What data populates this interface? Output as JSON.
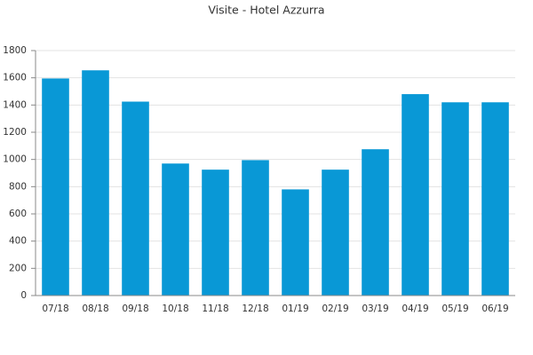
{
  "chart_data": {
    "type": "bar",
    "title": "Visite - Hotel Azzurra",
    "categories": [
      "07/18",
      "08/18",
      "09/18",
      "10/18",
      "11/18",
      "12/18",
      "01/19",
      "02/19",
      "03/19",
      "04/19",
      "05/19",
      "06/19"
    ],
    "values": [
      1595,
      1655,
      1425,
      970,
      925,
      995,
      780,
      925,
      1075,
      1480,
      1420,
      1420
    ],
    "color": "#0998d6",
    "ylim": [
      0,
      1800
    ],
    "yticks": [
      0,
      200,
      400,
      600,
      800,
      1000,
      1200,
      1400,
      1600,
      1800
    ],
    "grid": true
  }
}
